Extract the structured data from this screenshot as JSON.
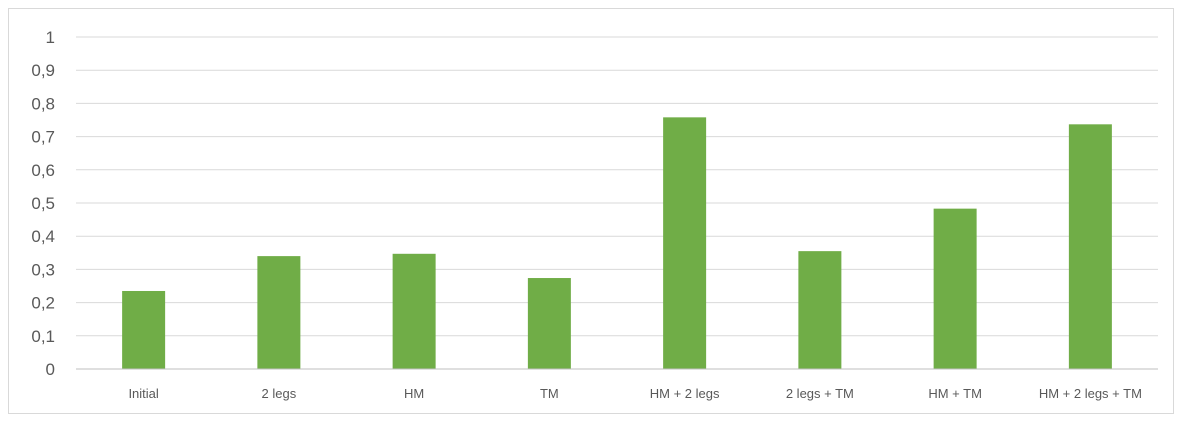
{
  "chart_data": {
    "type": "bar",
    "categories": [
      "Initial",
      "2 legs",
      "HM",
      "TM",
      "HM + 2 legs",
      "2 legs + TM",
      "HM + TM",
      "HM + 2 legs + TM"
    ],
    "values": [
      0.235,
      0.34,
      0.347,
      0.274,
      0.758,
      0.355,
      0.483,
      0.737
    ],
    "yticks": [
      "0",
      "0,1",
      "0,2",
      "0,3",
      "0,4",
      "0,5",
      "0,6",
      "0,7",
      "0,8",
      "0,9",
      "1"
    ],
    "ylim": [
      0,
      1
    ],
    "grid": true,
    "title": "",
    "xlabel": "",
    "ylabel": "",
    "colors": {
      "bar": "#70ad47",
      "grid": "#d9d9d9",
      "axis": "#bfbfbf",
      "text": "#595959"
    }
  }
}
